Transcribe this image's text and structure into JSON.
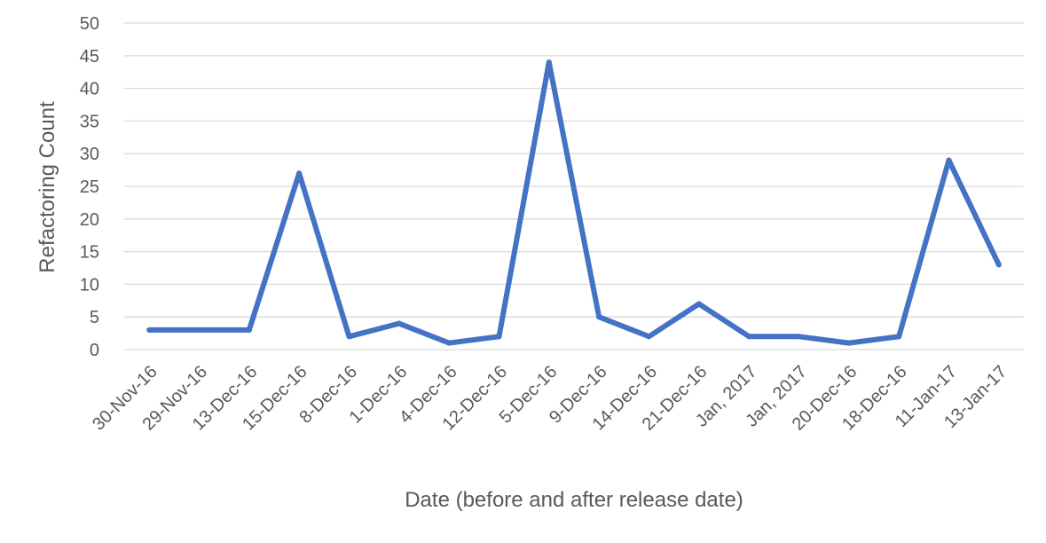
{
  "chart_data": {
    "type": "line",
    "categories": [
      "30-Nov-16",
      "29-Nov-16",
      "13-Dec-16",
      "15-Dec-16",
      "8-Dec-16",
      "1-Dec-16",
      "4-Dec-16",
      "12-Dec-16",
      "5-Dec-16",
      "9-Dec-16",
      "14-Dec-16",
      "21-Dec-16",
      "Jan, 2017",
      "Jan, 2017",
      "20-Dec-16",
      "18-Dec-16",
      "11-Jan-17",
      "13-Jan-17"
    ],
    "series": [
      {
        "values": [
          3,
          3,
          3,
          27,
          2,
          4,
          1,
          2,
          44,
          5,
          2,
          7,
          2,
          2,
          1,
          2,
          29,
          13
        ],
        "color": "#4472c4"
      }
    ],
    "xlabel": "Date (before and after release date)",
    "ylabel": "Refactoring Count",
    "ylim": [
      0,
      50
    ],
    "yticks": [
      0,
      5,
      10,
      15,
      20,
      25,
      30,
      35,
      40,
      45,
      50
    ],
    "grid": true,
    "legend": "none"
  }
}
